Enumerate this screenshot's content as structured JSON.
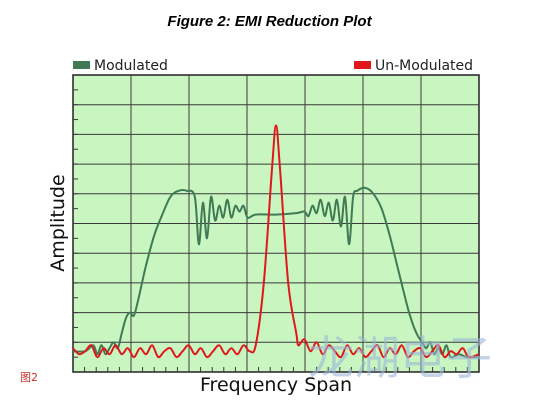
{
  "figure": {
    "title": "Figure 2: EMI Reduction Plot",
    "caption": "图2",
    "watermark": "龙湖电子"
  },
  "colors": {
    "plot_bg": "#c8f5c0",
    "grid": "#3a3a3a",
    "modulated": "#3f7a55",
    "unmodulated": "#e0181c"
  },
  "chart_data": {
    "type": "line",
    "xlabel": "Frequency Span",
    "ylabel": "Amplitude",
    "xlim": [
      0,
      10
    ],
    "ylim": [
      0,
      10
    ],
    "grid": true,
    "legend_placement": "top",
    "series": [
      {
        "name": "Modulated",
        "x": [
          0,
          0.3,
          0.5,
          0.6,
          0.7,
          0.8,
          0.9,
          1.0,
          1.1,
          1.2,
          1.3,
          1.4,
          1.5,
          1.6,
          1.7,
          1.8,
          2.0,
          2.2,
          2.4,
          2.6,
          2.8,
          3.0,
          3.1,
          3.2,
          3.3,
          3.4,
          3.5,
          3.6,
          3.7,
          3.8,
          3.9,
          4.0,
          4.1,
          4.2,
          4.3,
          4.5,
          5.0,
          5.5,
          5.7,
          5.8,
          5.9,
          6.0,
          6.1,
          6.2,
          6.3,
          6.4,
          6.5,
          6.6,
          6.7,
          6.8,
          6.9,
          7.0,
          7.2,
          7.4,
          7.6,
          7.8,
          8.0,
          8.2,
          8.3,
          8.4,
          8.5,
          8.6,
          8.7,
          8.8,
          8.9,
          9.0,
          9.1,
          9.2,
          9.3,
          9.5,
          9.7,
          10.0
        ],
        "y": [
          0.7,
          0.7,
          0.9,
          0.6,
          0.9,
          0.6,
          0.8,
          1.0,
          0.8,
          1.3,
          1.8,
          2.0,
          1.9,
          2.4,
          3.0,
          3.6,
          4.6,
          5.3,
          5.9,
          6.1,
          6.1,
          5.9,
          4.3,
          5.7,
          4.5,
          5.9,
          5.1,
          5.6,
          5.2,
          5.8,
          5.2,
          5.6,
          5.4,
          5.6,
          5.2,
          5.3,
          5.3,
          5.35,
          5.4,
          5.25,
          5.6,
          5.35,
          5.8,
          5.25,
          5.7,
          5.1,
          5.8,
          4.9,
          5.9,
          4.3,
          5.9,
          6.1,
          6.2,
          6.0,
          5.5,
          4.6,
          3.5,
          2.4,
          1.9,
          1.5,
          1.2,
          1.0,
          0.8,
          1.0,
          0.6,
          0.8,
          0.6,
          0.9,
          0.5,
          0.6,
          0.5,
          0.5
        ]
      },
      {
        "name": "Un-Modulated",
        "x": [
          0,
          0.15,
          0.3,
          0.45,
          0.6,
          0.75,
          0.9,
          1.05,
          1.2,
          1.35,
          1.5,
          1.65,
          1.8,
          1.95,
          2.1,
          2.25,
          2.4,
          2.55,
          2.7,
          2.85,
          3.0,
          3.15,
          3.3,
          3.45,
          3.6,
          3.75,
          3.9,
          4.05,
          4.2,
          4.35,
          4.5,
          4.7,
          4.9,
          5.0,
          5.1,
          5.3,
          5.5,
          5.55,
          5.7,
          5.85,
          6.0,
          6.15,
          6.3,
          6.45,
          6.6,
          6.75,
          6.9,
          7.05,
          7.2,
          7.35,
          7.5,
          7.65,
          7.8,
          7.95,
          8.1,
          8.25,
          8.4,
          8.55,
          8.7,
          8.85,
          9.0,
          9.15,
          9.3,
          9.45,
          9.6,
          9.75,
          10.0
        ],
        "y": [
          0.8,
          0.6,
          0.7,
          0.9,
          0.5,
          0.8,
          0.6,
          0.9,
          0.6,
          0.8,
          0.5,
          0.8,
          0.6,
          0.9,
          0.5,
          0.7,
          0.8,
          0.5,
          0.7,
          0.9,
          0.6,
          0.8,
          0.5,
          0.7,
          0.9,
          0.6,
          0.8,
          0.6,
          0.9,
          0.7,
          0.9,
          3.0,
          6.8,
          8.3,
          6.8,
          3.0,
          1.3,
          0.9,
          1.1,
          0.7,
          1.0,
          0.6,
          0.9,
          0.7,
          0.5,
          0.9,
          0.6,
          0.8,
          0.5,
          0.7,
          0.9,
          0.5,
          0.8,
          0.6,
          0.9,
          0.5,
          0.7,
          0.8,
          0.5,
          0.7,
          0.9,
          0.5,
          0.7,
          0.6,
          0.8,
          0.5,
          0.6
        ]
      }
    ]
  }
}
